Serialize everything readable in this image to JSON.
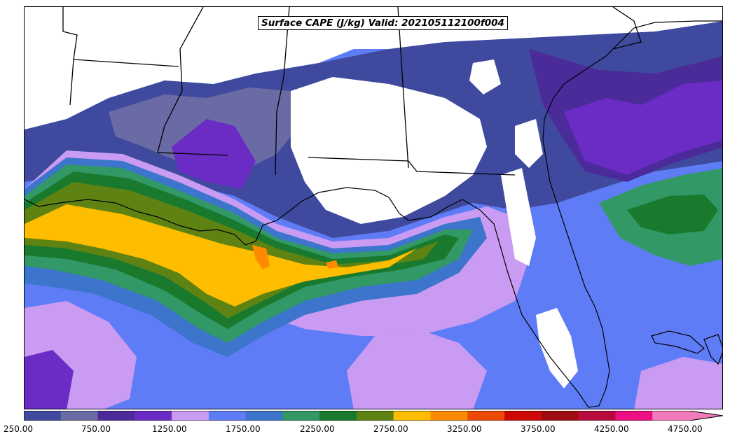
{
  "map": {
    "title": "Surface CAPE (J/kg) Valid: 202105112100f004",
    "field": "Surface CAPE",
    "units": "J/kg",
    "valid_time": "202105112100f004",
    "region": "Gulf of Mexico / Southeastern US",
    "projection_features": [
      "coastlines",
      "state-borders"
    ],
    "below_min_color": "#ffffff"
  },
  "colorbar": {
    "min": 250,
    "max": 5000,
    "interval": 250,
    "extend": "max",
    "tick_labels": [
      "250.00",
      "750.00",
      "1250.00",
      "1750.00",
      "2250.00",
      "2750.00",
      "3250.00",
      "3750.00",
      "4250.00",
      "4750.00"
    ],
    "colors": [
      "#3f4a9e",
      "#6a6ba4",
      "#4b2a9a",
      "#6a2cc4",
      "#c99bf2",
      "#5f7cf7",
      "#3c75cb",
      "#319866",
      "#197a2e",
      "#5e8313",
      "#ffbd00",
      "#ff8a00",
      "#ec4a04",
      "#cd0806",
      "#9e0c12",
      "#b80b3d",
      "#ee0d83",
      "#f07abb"
    ]
  }
}
